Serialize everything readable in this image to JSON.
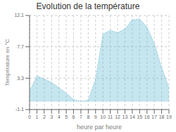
{
  "chart_data": {
    "type": "area",
    "title": "Evolution de la température",
    "x_label": "heure par heure",
    "y_label": "Température en °C",
    "x": [
      0,
      1,
      2,
      3,
      4,
      5,
      6,
      7,
      8,
      9,
      10,
      11,
      12,
      13,
      14,
      15,
      16,
      17,
      18,
      19
    ],
    "values": [
      1.5,
      3.6,
      3.2,
      2.7,
      2.0,
      1.2,
      0.3,
      0.05,
      0.2,
      3.2,
      9.5,
      10.0,
      9.7,
      10.2,
      11.5,
      11.6,
      10.5,
      8.2,
      4.8,
      2.0
    ],
    "color": "#5ab4d0",
    "line_style": "dotted",
    "xlim": [
      0,
      19
    ],
    "xticks": [
      0,
      1,
      2,
      3,
      4,
      5,
      6,
      7,
      8,
      9,
      10,
      11,
      12,
      13,
      14,
      15,
      16,
      17,
      18,
      19
    ],
    "ylim": [
      -1.1,
      12.1
    ],
    "yticks": [
      -1.1,
      3.3,
      7.7,
      12.1
    ],
    "grid": true
  }
}
